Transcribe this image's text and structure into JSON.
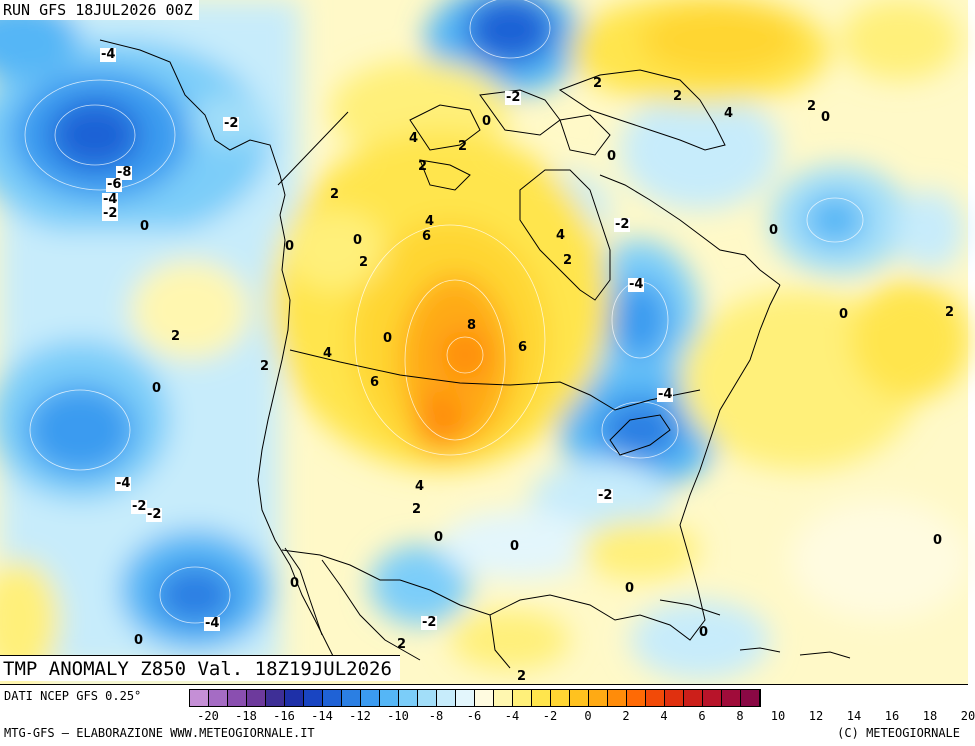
{
  "run_title": "RUN GFS 18JUL2026 00Z",
  "map_title": "TMP ANOMALY Z850 Val. 18Z19JUL2026",
  "footer": {
    "source": "DATI NCEP GFS 0.25°",
    "credit_left": "MTG-GFS — ELABORAZIONE WWW.METEOGIORNALE.IT",
    "credit_right": "(C) METEOGIORNALE"
  },
  "legend": {
    "colors": [
      "#c58fd6",
      "#a56cc4",
      "#8a4fb0",
      "#6d3a9c",
      "#3e2f96",
      "#1e30a8",
      "#1945c2",
      "#1f62d6",
      "#2b7fe3",
      "#3b9bf0",
      "#55b6f6",
      "#7bcdf9",
      "#a2def9",
      "#c7ecfb",
      "#e3f6fc",
      "#fffbe0",
      "#fff7b0",
      "#fff07a",
      "#ffe54d",
      "#ffd633",
      "#ffc21f",
      "#ffaa14",
      "#ff8c0a",
      "#ff6a05",
      "#f24a08",
      "#e0300f",
      "#cc1f1a",
      "#b8142a",
      "#a00c3a",
      "#8a0844"
    ],
    "ticks": [
      "-20",
      "-18",
      "-16",
      "-14",
      "-12",
      "-10",
      "-8",
      "-6",
      "-4",
      "-2",
      "0",
      "2",
      "4",
      "6",
      "8",
      "10",
      "12",
      "14",
      "16",
      "18",
      "20"
    ]
  },
  "labels": [
    {
      "text": "-4"
    },
    {
      "text": "-2"
    },
    {
      "text": "-8"
    },
    {
      "text": "-6"
    },
    {
      "text": "-4"
    },
    {
      "text": "-2"
    },
    {
      "text": "0"
    },
    {
      "text": "2"
    },
    {
      "text": "0"
    },
    {
      "text": "2"
    },
    {
      "text": "4"
    },
    {
      "text": "6"
    },
    {
      "text": "0"
    },
    {
      "text": "2"
    },
    {
      "text": "-2"
    },
    {
      "text": "0"
    },
    {
      "text": "4"
    },
    {
      "text": "2"
    },
    {
      "text": "2"
    },
    {
      "text": "2"
    },
    {
      "text": "4"
    },
    {
      "text": "2"
    },
    {
      "text": "0"
    },
    {
      "text": "0"
    },
    {
      "text": "4"
    },
    {
      "text": "2"
    },
    {
      "text": "-2"
    },
    {
      "text": "0"
    },
    {
      "text": "-4"
    },
    {
      "text": "0"
    },
    {
      "text": "2"
    },
    {
      "text": "8"
    },
    {
      "text": "6"
    },
    {
      "text": "0"
    },
    {
      "text": "4"
    },
    {
      "text": "2"
    },
    {
      "text": "6"
    },
    {
      "text": "0"
    },
    {
      "text": "2"
    },
    {
      "text": "-4"
    },
    {
      "text": "-4"
    },
    {
      "text": "-2"
    },
    {
      "text": "-2"
    },
    {
      "text": "4"
    },
    {
      "text": "2"
    },
    {
      "text": "0"
    },
    {
      "text": "0"
    },
    {
      "text": "-2"
    },
    {
      "text": "0"
    },
    {
      "text": "0"
    },
    {
      "text": "0"
    },
    {
      "text": "-4"
    },
    {
      "text": "0"
    },
    {
      "text": "2"
    },
    {
      "text": "-2"
    },
    {
      "text": "0"
    },
    {
      "text": "2"
    }
  ]
}
